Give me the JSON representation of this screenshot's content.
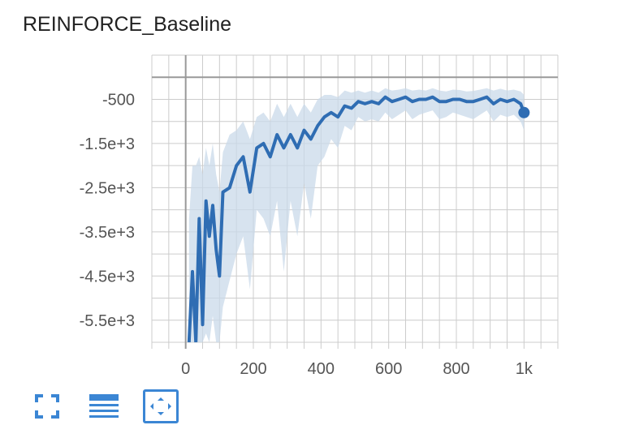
{
  "chart_title": "REINFORCE_Baseline",
  "colors": {
    "line": "#2f6db3",
    "band": "#c9d9ea",
    "grid": "#cccccc",
    "axis": "#999999",
    "accent": "#3b86d4"
  },
  "toolbar": {
    "buttons": [
      {
        "name": "fullscreen-button",
        "icon": "expand-icon"
      },
      {
        "name": "toggle-log-button",
        "icon": "lines-icon"
      },
      {
        "name": "fit-domain-button",
        "icon": "fit-domain-icon"
      }
    ]
  },
  "chart_data": {
    "type": "line",
    "title": "REINFORCE_Baseline",
    "xlabel": "",
    "ylabel": "",
    "xlim": [
      -100,
      1100
    ],
    "ylim": [
      -6000,
      500
    ],
    "x_ticks": [
      0,
      200,
      400,
      600,
      800,
      1000
    ],
    "x_tick_labels": [
      "0",
      "200",
      "400",
      "600",
      "800",
      "1k"
    ],
    "y_ticks": [
      -500,
      -1500,
      -2500,
      -3500,
      -4500,
      -5500
    ],
    "y_tick_labels": [
      "-500",
      "-1.5e+3",
      "-2.5e+3",
      "-3.5e+3",
      "-4.5e+3",
      "-5.5e+3"
    ],
    "grid": true,
    "series": [
      {
        "x": [
          10,
          20,
          30,
          40,
          50,
          60,
          70,
          80,
          90,
          100,
          110,
          130,
          150,
          170,
          190,
          210,
          230,
          250,
          270,
          290,
          310,
          330,
          350,
          370,
          390,
          410,
          430,
          450,
          470,
          490,
          510,
          530,
          550,
          570,
          590,
          610,
          630,
          650,
          670,
          690,
          710,
          730,
          750,
          770,
          790,
          810,
          830,
          850,
          870,
          890,
          910,
          930,
          950,
          970,
          990,
          1000
        ],
        "values": [
          -6000,
          -4400,
          -6000,
          -3200,
          -5600,
          -2800,
          -3600,
          -2900,
          -3900,
          -4500,
          -2600,
          -2500,
          -2000,
          -1800,
          -2600,
          -1600,
          -1500,
          -1800,
          -1300,
          -1600,
          -1300,
          -1600,
          -1200,
          -1400,
          -1100,
          -900,
          -800,
          -900,
          -650,
          -700,
          -550,
          -600,
          -550,
          -600,
          -450,
          -550,
          -500,
          -450,
          -550,
          -500,
          -500,
          -450,
          -550,
          -550,
          -500,
          -500,
          -550,
          -550,
          -500,
          -450,
          -600,
          -500,
          -550,
          -500,
          -600,
          -800
        ],
        "band_upper": [
          -3200,
          -2000,
          -2000,
          -1800,
          -2200,
          -1600,
          -2000,
          -1500,
          -2200,
          -2600,
          -1700,
          -1300,
          -1200,
          -1000,
          -1400,
          -900,
          -800,
          -1000,
          -600,
          -900,
          -600,
          -900,
          -600,
          -800,
          -500,
          -400,
          -400,
          -450,
          -300,
          -350,
          -300,
          -350,
          -300,
          -350,
          -250,
          -300,
          -280,
          -250,
          -300,
          -280,
          -300,
          -250,
          -300,
          -320,
          -280,
          -290,
          -320,
          -310,
          -280,
          -250,
          -300,
          -260,
          -300,
          -280,
          -320,
          -400
        ],
        "band_lower": [
          -6000,
          -6000,
          -6000,
          -6000,
          -6000,
          -5800,
          -6000,
          -5400,
          -6000,
          -6000,
          -5200,
          -4600,
          -4000,
          -3600,
          -4800,
          -3000,
          -3200,
          -3600,
          -2800,
          -4400,
          -2800,
          -3600,
          -2400,
          -3200,
          -2000,
          -1800,
          -1400,
          -1600,
          -1100,
          -1200,
          -900,
          -1000,
          -950,
          -1000,
          -800,
          -950,
          -850,
          -750,
          -950,
          -850,
          -800,
          -750,
          -950,
          -900,
          -800,
          -850,
          -900,
          -950,
          -850,
          -750,
          -1000,
          -850,
          -900,
          -850,
          -1000,
          -1200
        ]
      }
    ]
  }
}
